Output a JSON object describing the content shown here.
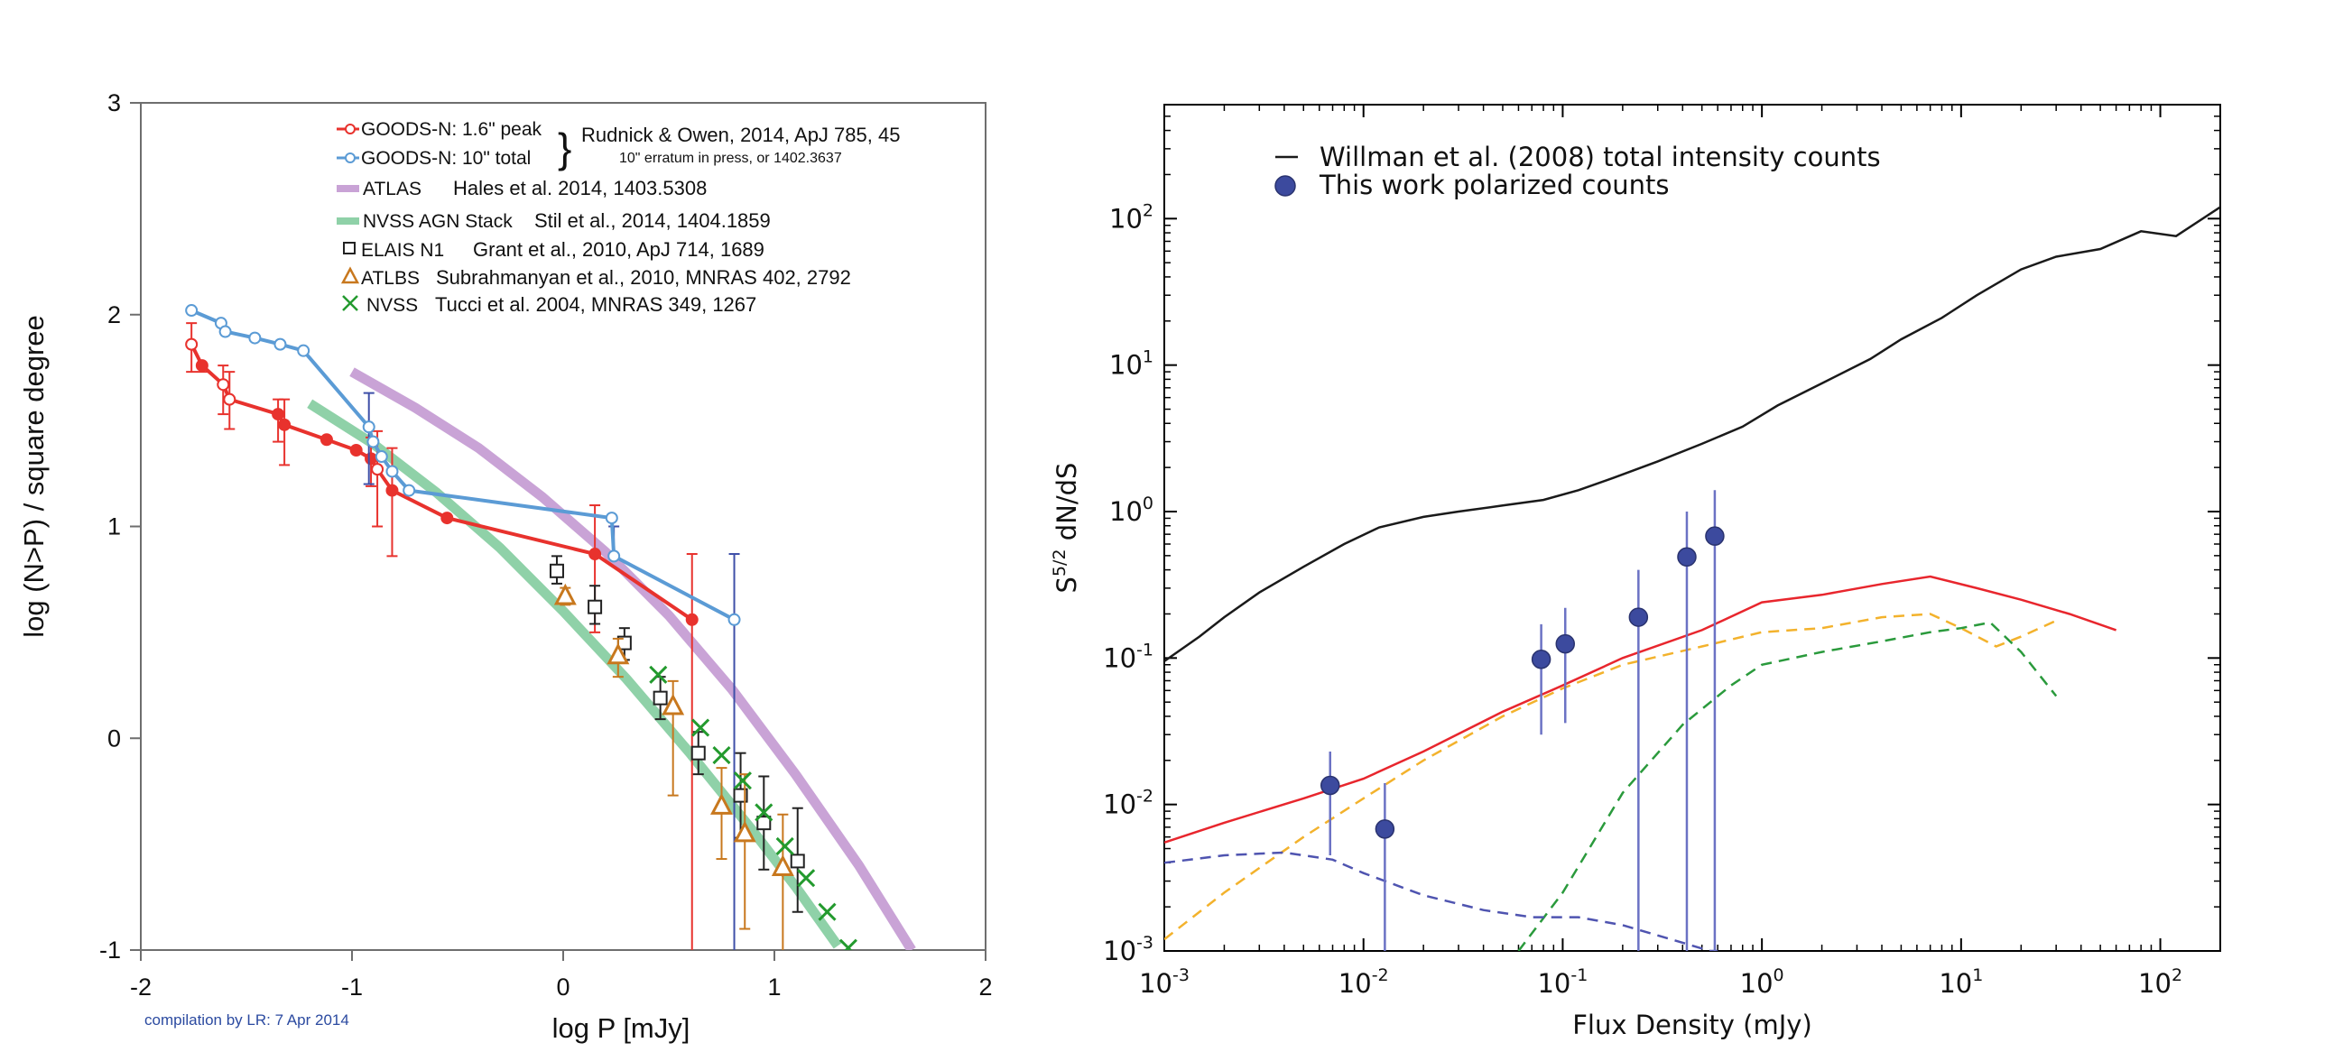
{
  "chart_data": [
    {
      "type": "line",
      "xlabel": "log P [mJy]",
      "ylabel": "log (N>P) / square degree",
      "xlim": [
        -2,
        2
      ],
      "ylim": [
        -1,
        3
      ],
      "x_ticks": [
        "-2",
        "-1",
        "0",
        "1",
        "2"
      ],
      "y_ticks": [
        "-1",
        "0",
        "1",
        "2",
        "3"
      ],
      "footnote": "compilation by LR: 7 Apr 2014",
      "legend_position": "top-right",
      "brace_reference": "Rudnick & Owen, 2014, ApJ 785, 45",
      "brace_note": "10\" erratum in press, or 1402.3637",
      "series": [
        {
          "name": "GOODS-N: 1.6\" peak",
          "color": "#e8322d",
          "style": "line-markers",
          "x": [
            -1.76,
            -1.71,
            -1.61,
            -1.58,
            -1.35,
            -1.32,
            -1.12,
            -0.98,
            -0.91,
            -0.88,
            -0.81,
            -0.55,
            0.15,
            0.61
          ],
          "y": [
            1.86,
            1.76,
            1.67,
            1.6,
            1.53,
            1.48,
            1.41,
            1.36,
            1.32,
            1.27,
            1.17,
            1.04,
            0.87,
            0.56
          ],
          "hollow": [
            true,
            false,
            true,
            true,
            false,
            false,
            false,
            false,
            false,
            true,
            false,
            false,
            false,
            false
          ],
          "err_low": [
            1.73,
            1.73,
            1.53,
            1.46,
            1.4,
            1.29,
            1.41,
            1.36,
            1.19,
            1.0,
            0.86,
            1.04,
            0.5,
            -1.0
          ],
          "err_high": [
            1.96,
            1.76,
            1.76,
            1.73,
            1.6,
            1.6,
            1.41,
            1.36,
            1.42,
            1.45,
            1.37,
            1.04,
            1.1,
            0.87
          ]
        },
        {
          "name": "GOODS-N: 10\" total",
          "color": "#5b9bd5",
          "style": "line-markers",
          "x": [
            -1.76,
            -1.62,
            -1.6,
            -1.46,
            -1.34,
            -1.23,
            -0.92,
            -0.9,
            -0.86,
            -0.81,
            -0.73,
            0.23,
            0.24,
            0.81
          ],
          "y": [
            2.02,
            1.96,
            1.92,
            1.89,
            1.86,
            1.83,
            1.47,
            1.4,
            1.33,
            1.26,
            1.17,
            1.04,
            0.86,
            0.56
          ],
          "err_low": [
            2.02,
            1.96,
            1.92,
            1.89,
            1.86,
            1.83,
            1.2,
            1.4,
            1.33,
            1.26,
            1.17,
            1.04,
            0.86,
            -1.0
          ],
          "err_high": [
            2.02,
            1.96,
            1.92,
            1.89,
            1.86,
            1.83,
            1.63,
            1.4,
            1.33,
            1.26,
            1.17,
            1.04,
            1.0,
            0.87
          ],
          "err_color": "#3e4fa8"
        },
        {
          "name": "ATLAS",
          "reference": "Hales et al. 2014, 1403.5308",
          "color": "#c9a3d6",
          "style": "thick-line",
          "x": [
            -1.0,
            -0.7,
            -0.4,
            -0.1,
            0.2,
            0.5,
            0.8,
            1.1,
            1.4,
            1.65
          ],
          "y": [
            1.73,
            1.56,
            1.37,
            1.14,
            0.88,
            0.58,
            0.23,
            -0.17,
            -0.6,
            -1.0
          ]
        },
        {
          "name": "NVSS AGN Stack",
          "reference": "Stil et al., 2014, 1404.1859",
          "color": "#8fd1a8",
          "style": "thick-line",
          "x": [
            -1.2,
            -0.9,
            -0.6,
            -0.3,
            0.0,
            0.3,
            0.6,
            0.9,
            1.1,
            1.3
          ],
          "y": [
            1.58,
            1.39,
            1.16,
            0.9,
            0.6,
            0.28,
            -0.07,
            -0.44,
            -0.7,
            -0.98
          ]
        },
        {
          "name": "ELAIS N1",
          "reference": "Grant et al., 2010, ApJ 714, 1689",
          "color": "#222222",
          "style": "square",
          "x": [
            -0.03,
            0.15,
            0.29,
            0.46,
            0.64,
            0.84,
            0.95,
            1.11
          ],
          "y": [
            0.79,
            0.62,
            0.45,
            0.19,
            -0.07,
            -0.27,
            -0.4,
            -0.58
          ],
          "err_low": [
            0.73,
            0.54,
            0.37,
            0.09,
            -0.17,
            -0.47,
            -0.62,
            -0.82
          ],
          "err_high": [
            0.86,
            0.72,
            0.52,
            0.29,
            0.03,
            -0.07,
            -0.18,
            -0.33
          ]
        },
        {
          "name": "ATLBS",
          "reference": "Subrahmanyan et al., 2010, MNRAS 402, 2792",
          "color": "#c8781e",
          "style": "triangle",
          "x": [
            0.01,
            0.26,
            0.52,
            0.75,
            0.86,
            1.04
          ],
          "y": [
            0.67,
            0.39,
            0.15,
            -0.32,
            -0.45,
            -0.61
          ],
          "err_low": [
            0.63,
            0.29,
            -0.27,
            -0.57,
            -0.9,
            -1.0
          ],
          "err_high": [
            0.71,
            0.47,
            0.27,
            -0.14,
            -0.17,
            -0.36
          ]
        },
        {
          "name": "NVSS",
          "reference": "Tucci et al. 2004, MNRAS 349, 1267",
          "color": "#239a2e",
          "style": "x",
          "x": [
            0.45,
            0.65,
            0.75,
            0.85,
            0.95,
            1.05,
            1.15,
            1.25,
            1.35
          ],
          "y": [
            0.3,
            0.05,
            -0.08,
            -0.2,
            -0.35,
            -0.51,
            -0.66,
            -0.82,
            -0.99
          ]
        }
      ]
    },
    {
      "type": "line",
      "xscale": "log",
      "yscale": "log",
      "xlabel": "Flux Density (mJy)",
      "ylabel_base": "S",
      "ylabel_exp": "5/2",
      "ylabel_rest": " dN/dS",
      "xlim": [
        0.001,
        200
      ],
      "ylim": [
        0.001,
        600
      ],
      "x_ticks": [
        {
          "value": 0.001,
          "base": "10",
          "exp": "-3"
        },
        {
          "value": 0.01,
          "base": "10",
          "exp": "-2"
        },
        {
          "value": 0.1,
          "base": "10",
          "exp": "-1"
        },
        {
          "value": 1,
          "base": "10",
          "exp": "0"
        },
        {
          "value": 10,
          "base": "10",
          "exp": "1"
        },
        {
          "value": 100,
          "base": "10",
          "exp": "2"
        }
      ],
      "y_ticks": [
        {
          "value": 0.001,
          "base": "10",
          "exp": "-3"
        },
        {
          "value": 0.01,
          "base": "10",
          "exp": "-2"
        },
        {
          "value": 0.1,
          "base": "10",
          "exp": "-1"
        },
        {
          "value": 1,
          "base": "10",
          "exp": "0"
        },
        {
          "value": 10,
          "base": "10",
          "exp": "1"
        },
        {
          "value": 100,
          "base": "10",
          "exp": "2"
        }
      ],
      "legend_position": "top-left",
      "series": [
        {
          "name": "Willman et al. (2008) total intensity counts",
          "color": "#1a1a1a",
          "style": "solid",
          "x": [
            0.001,
            0.0015,
            0.002,
            0.003,
            0.005,
            0.008,
            0.012,
            0.02,
            0.03,
            0.05,
            0.08,
            0.12,
            0.18,
            0.3,
            0.5,
            0.8,
            1.2,
            2,
            3.5,
            5,
            8,
            12,
            20,
            30,
            50,
            80,
            120,
            200
          ],
          "y": [
            0.095,
            0.14,
            0.19,
            0.28,
            0.42,
            0.6,
            0.78,
            0.92,
            1.0,
            1.1,
            1.2,
            1.4,
            1.7,
            2.2,
            2.9,
            3.8,
            5.3,
            7.5,
            11,
            15,
            21,
            30,
            45,
            55,
            62,
            82,
            76,
            120
          ]
        },
        {
          "name": "This work polarized counts",
          "color": "#3c4a9e",
          "style": "points",
          "x": [
            0.0068,
            0.0128,
            0.078,
            0.103,
            0.24,
            0.42,
            0.58
          ],
          "y": [
            0.0135,
            0.0068,
            0.098,
            0.125,
            0.19,
            0.49,
            0.68
          ],
          "err_low": [
            0.0045,
            0.0009,
            0.03,
            0.036,
            0.001,
            0.001,
            0.001
          ],
          "err_high": [
            0.023,
            0.014,
            0.17,
            0.22,
            0.4,
            1.0,
            1.4
          ]
        },
        {
          "color": "#e8262d",
          "style": "solid",
          "x": [
            0.001,
            0.002,
            0.005,
            0.01,
            0.02,
            0.05,
            0.1,
            0.2,
            0.5,
            1,
            2,
            4,
            7,
            12,
            20,
            35,
            60
          ],
          "y": [
            0.0055,
            0.0075,
            0.011,
            0.015,
            0.023,
            0.043,
            0.065,
            0.1,
            0.155,
            0.24,
            0.27,
            0.32,
            0.36,
            0.3,
            0.25,
            0.2,
            0.155
          ]
        },
        {
          "color": "#f3b22c",
          "style": "dashed",
          "x": [
            0.001,
            0.002,
            0.005,
            0.01,
            0.02,
            0.05,
            0.1,
            0.2,
            0.5,
            1,
            2,
            4,
            7,
            10,
            15,
            20,
            30
          ],
          "y": [
            0.0012,
            0.0025,
            0.006,
            0.011,
            0.02,
            0.04,
            0.062,
            0.09,
            0.12,
            0.15,
            0.16,
            0.19,
            0.2,
            0.16,
            0.12,
            0.14,
            0.18
          ]
        },
        {
          "color": "#2a9a3c",
          "style": "dashed",
          "x": [
            0.06,
            0.1,
            0.2,
            0.4,
            0.7,
            1,
            2,
            4,
            7,
            10,
            14,
            20,
            30
          ],
          "y": [
            0.001,
            0.0025,
            0.012,
            0.035,
            0.065,
            0.09,
            0.11,
            0.13,
            0.15,
            0.16,
            0.175,
            0.11,
            0.055
          ]
        },
        {
          "color": "#4f54b0",
          "style": "dashed",
          "x": [
            0.001,
            0.002,
            0.004,
            0.007,
            0.01,
            0.02,
            0.04,
            0.07,
            0.12,
            0.2,
            0.35,
            0.55,
            0.6
          ],
          "y": [
            0.004,
            0.0045,
            0.0047,
            0.0042,
            0.0034,
            0.0024,
            0.0019,
            0.0017,
            0.0017,
            0.0015,
            0.0012,
            0.001,
            0.001
          ]
        }
      ]
    }
  ]
}
